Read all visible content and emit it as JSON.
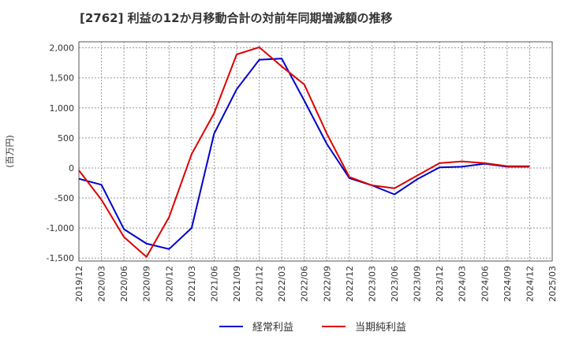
{
  "chart_data": {
    "type": "line",
    "title": "[2762]  利益の12か月移動合計の対前年同期増減額の推移",
    "ylabel": "(百万円)",
    "xlabel": "",
    "ylim": [
      -1550,
      2100
    ],
    "yticks": [
      2000,
      1500,
      1000,
      500,
      0,
      -500,
      -1000,
      -1500
    ],
    "ytick_labels": [
      "2,000",
      "1,500",
      "1,000",
      "500",
      "0",
      "-500",
      "-1,000",
      "-1,500"
    ],
    "categories": [
      "2019/12",
      "2020/03",
      "2020/06",
      "2020/09",
      "2020/12",
      "2021/03",
      "2021/06",
      "2021/09",
      "2021/12",
      "2022/03",
      "2022/06",
      "2022/09",
      "2022/12",
      "2023/03",
      "2023/06",
      "2023/09",
      "2023/12",
      "2024/03",
      "2024/06",
      "2024/09",
      "2024/12",
      "2025/03"
    ],
    "series": [
      {
        "name": "経常利益",
        "color": "#0000cc",
        "values": [
          -180,
          -280,
          -1020,
          -1260,
          -1350,
          -1000,
          570,
          1310,
          1800,
          1820,
          1120,
          400,
          -170,
          -290,
          -440,
          -190,
          10,
          20,
          70,
          20,
          20,
          null
        ]
      },
      {
        "name": "当期純利益",
        "color": "#dd0000",
        "values": [
          -40,
          -530,
          -1150,
          -1480,
          -820,
          230,
          910,
          1890,
          2010,
          1690,
          1390,
          570,
          -150,
          -290,
          -340,
          -130,
          80,
          110,
          80,
          30,
          30,
          null
        ]
      }
    ],
    "grid": true,
    "legend_position": "bottom"
  }
}
